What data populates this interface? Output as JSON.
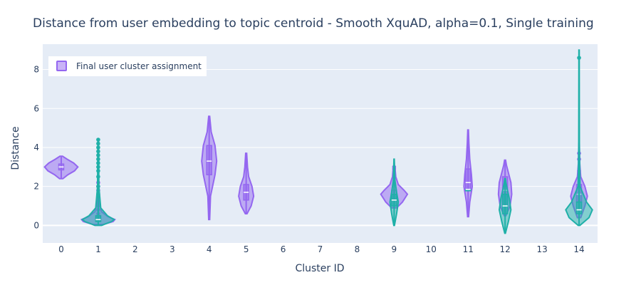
{
  "chart_data": {
    "type": "violin",
    "title": "Distance from user embedding to topic centroid - Smooth XquAD, alpha=0.1, Single training",
    "xlabel": "Cluster ID",
    "ylabel": "Distance",
    "categories": [
      "0",
      "1",
      "2",
      "3",
      "4",
      "5",
      "6",
      "7",
      "8",
      "9",
      "10",
      "11",
      "12",
      "13",
      "14"
    ],
    "y_ticks": [
      0,
      2,
      4,
      6,
      8
    ],
    "y_tick_labels": [
      "0",
      "2",
      "4",
      "6",
      "8"
    ],
    "ylim": [
      -0.9,
      9.3
    ],
    "grid": true,
    "legend_position": "top-left",
    "colors": {
      "purple": "#9467f0",
      "teal": "#1fb0a8",
      "plot_bg": "#e5ecf6",
      "grid": "#ffffff",
      "text": "#2a3f5f"
    },
    "legend": {
      "label": "Final user cluster assignment"
    },
    "series": [
      {
        "name": "Final user cluster assignment",
        "color": "#9467f0",
        "violins": [
          {
            "x": 0,
            "min": 2.4,
            "q1": 2.85,
            "median": 3.0,
            "q3": 3.15,
            "max": 3.55,
            "profile": [
              [
                2.4,
                0.1
              ],
              [
                2.6,
                0.4
              ],
              [
                2.8,
                0.8
              ],
              [
                3.0,
                1.0
              ],
              [
                3.2,
                0.75
              ],
              [
                3.4,
                0.35
              ],
              [
                3.55,
                0.08
              ]
            ]
          },
          {
            "x": 1,
            "min": 0.05,
            "q1": 0.2,
            "median": 0.3,
            "q3": 0.45,
            "max": 2.3,
            "profile": [
              [
                0.05,
                0.3
              ],
              [
                0.2,
                0.9
              ],
              [
                0.3,
                1.0
              ],
              [
                0.45,
                0.6
              ],
              [
                0.7,
                0.2
              ],
              [
                1.2,
                0.06
              ],
              [
                2.3,
                0.02
              ]
            ],
            "points": [
              0.6,
              0.8,
              1.0,
              1.2,
              1.4,
              1.6,
              1.8,
              2.0,
              2.2
            ]
          },
          {
            "x": 4,
            "min": 0.3,
            "q1": 2.6,
            "median": 3.3,
            "q3": 4.1,
            "max": 5.6,
            "profile": [
              [
                0.3,
                0.03
              ],
              [
                1.5,
                0.08
              ],
              [
                2.6,
                0.35
              ],
              [
                3.3,
                0.45
              ],
              [
                4.1,
                0.35
              ],
              [
                4.8,
                0.12
              ],
              [
                5.6,
                0.03
              ]
            ]
          },
          {
            "x": 5,
            "min": 0.6,
            "q1": 1.3,
            "median": 1.7,
            "q3": 2.1,
            "max": 3.7,
            "profile": [
              [
                0.6,
                0.05
              ],
              [
                1.0,
                0.3
              ],
              [
                1.5,
                0.45
              ],
              [
                2.0,
                0.35
              ],
              [
                2.5,
                0.15
              ],
              [
                3.0,
                0.08
              ],
              [
                3.7,
                0.03
              ]
            ]
          },
          {
            "x": 9,
            "min": 0.9,
            "q1": 1.35,
            "median": 1.6,
            "q3": 1.8,
            "max": 3.0,
            "profile": [
              [
                0.9,
                0.15
              ],
              [
                1.2,
                0.5
              ],
              [
                1.6,
                0.8
              ],
              [
                1.8,
                0.6
              ],
              [
                2.1,
                0.25
              ],
              [
                2.5,
                0.1
              ],
              [
                3.0,
                0.05
              ]
            ],
            "points": [
              2.9,
              3.0
            ]
          },
          {
            "x": 11,
            "min": 0.45,
            "q1": 1.8,
            "median": 2.2,
            "q3": 2.9,
            "max": 4.9,
            "profile": [
              [
                0.45,
                0.03
              ],
              [
                1.2,
                0.1
              ],
              [
                2.0,
                0.25
              ],
              [
                2.6,
                0.2
              ],
              [
                3.4,
                0.1
              ],
              [
                4.2,
                0.05
              ],
              [
                4.9,
                0.02
              ]
            ]
          },
          {
            "x": 12,
            "min": 0.5,
            "q1": 1.1,
            "median": 1.8,
            "q3": 2.5,
            "max": 3.35,
            "profile": [
              [
                0.5,
                0.05
              ],
              [
                1.0,
                0.3
              ],
              [
                1.6,
                0.4
              ],
              [
                2.2,
                0.35
              ],
              [
                2.7,
                0.2
              ],
              [
                3.1,
                0.08
              ],
              [
                3.35,
                0.03
              ]
            ]
          },
          {
            "x": 14,
            "min": 0.4,
            "q1": 1.2,
            "median": 1.6,
            "q3": 2.1,
            "max": 4.2,
            "profile": [
              [
                0.4,
                0.1
              ],
              [
                1.0,
                0.35
              ],
              [
                1.5,
                0.5
              ],
              [
                2.0,
                0.35
              ],
              [
                2.5,
                0.1
              ],
              [
                3.2,
                0.04
              ],
              [
                4.2,
                0.02
              ]
            ],
            "points": [
              3.4,
              3.7,
              2.8
            ]
          }
        ]
      },
      {
        "name": "",
        "color": "#1fb0a8",
        "violins": [
          {
            "x": 1,
            "min": 0.0,
            "q1": 0.2,
            "median": 0.3,
            "q3": 0.5,
            "max": 4.4,
            "profile": [
              [
                0.0,
                0.2
              ],
              [
                0.2,
                0.8
              ],
              [
                0.3,
                0.95
              ],
              [
                0.5,
                0.55
              ],
              [
                0.9,
                0.15
              ],
              [
                2.0,
                0.04
              ],
              [
                4.4,
                0.02
              ]
            ],
            "points": [
              1.5,
              2.0,
              2.5,
              2.8,
              3.0,
              3.2,
              3.4,
              3.6,
              3.8,
              4.0,
              4.2,
              4.4
            ]
          },
          {
            "x": 9,
            "min": 0.0,
            "q1": 1.0,
            "median": 1.3,
            "q3": 1.6,
            "max": 3.4,
            "profile": [
              [
                0.0,
                0.02
              ],
              [
                0.6,
                0.15
              ],
              [
                1.2,
                0.25
              ],
              [
                1.7,
                0.15
              ],
              [
                2.3,
                0.05
              ],
              [
                2.9,
                0.03
              ],
              [
                3.4,
                0.01
              ]
            ]
          },
          {
            "x": 11,
            "min": 1.85,
            "q1": 1.85,
            "median": 1.85,
            "q3": 1.85,
            "max": 1.85,
            "profile": [
              [
                1.85,
                0.01
              ]
            ]
          },
          {
            "x": 12,
            "min": -0.4,
            "q1": 0.6,
            "median": 1.0,
            "q3": 1.6,
            "max": 2.4,
            "profile": [
              [
                -0.4,
                0.02
              ],
              [
                0.2,
                0.2
              ],
              [
                0.8,
                0.35
              ],
              [
                1.4,
                0.25
              ],
              [
                1.9,
                0.12
              ],
              [
                2.2,
                0.05
              ],
              [
                2.4,
                0.02
              ]
            ]
          },
          {
            "x": 14,
            "min": 0.0,
            "q1": 0.6,
            "median": 0.8,
            "q3": 1.2,
            "max": 9.0,
            "profile": [
              [
                0.0,
                0.05
              ],
              [
                0.4,
                0.6
              ],
              [
                0.8,
                0.8
              ],
              [
                1.2,
                0.45
              ],
              [
                2.0,
                0.06
              ],
              [
                4.0,
                0.02
              ],
              [
                9.0,
                0.01
              ]
            ],
            "points": [
              8.6
            ]
          }
        ]
      }
    ]
  }
}
